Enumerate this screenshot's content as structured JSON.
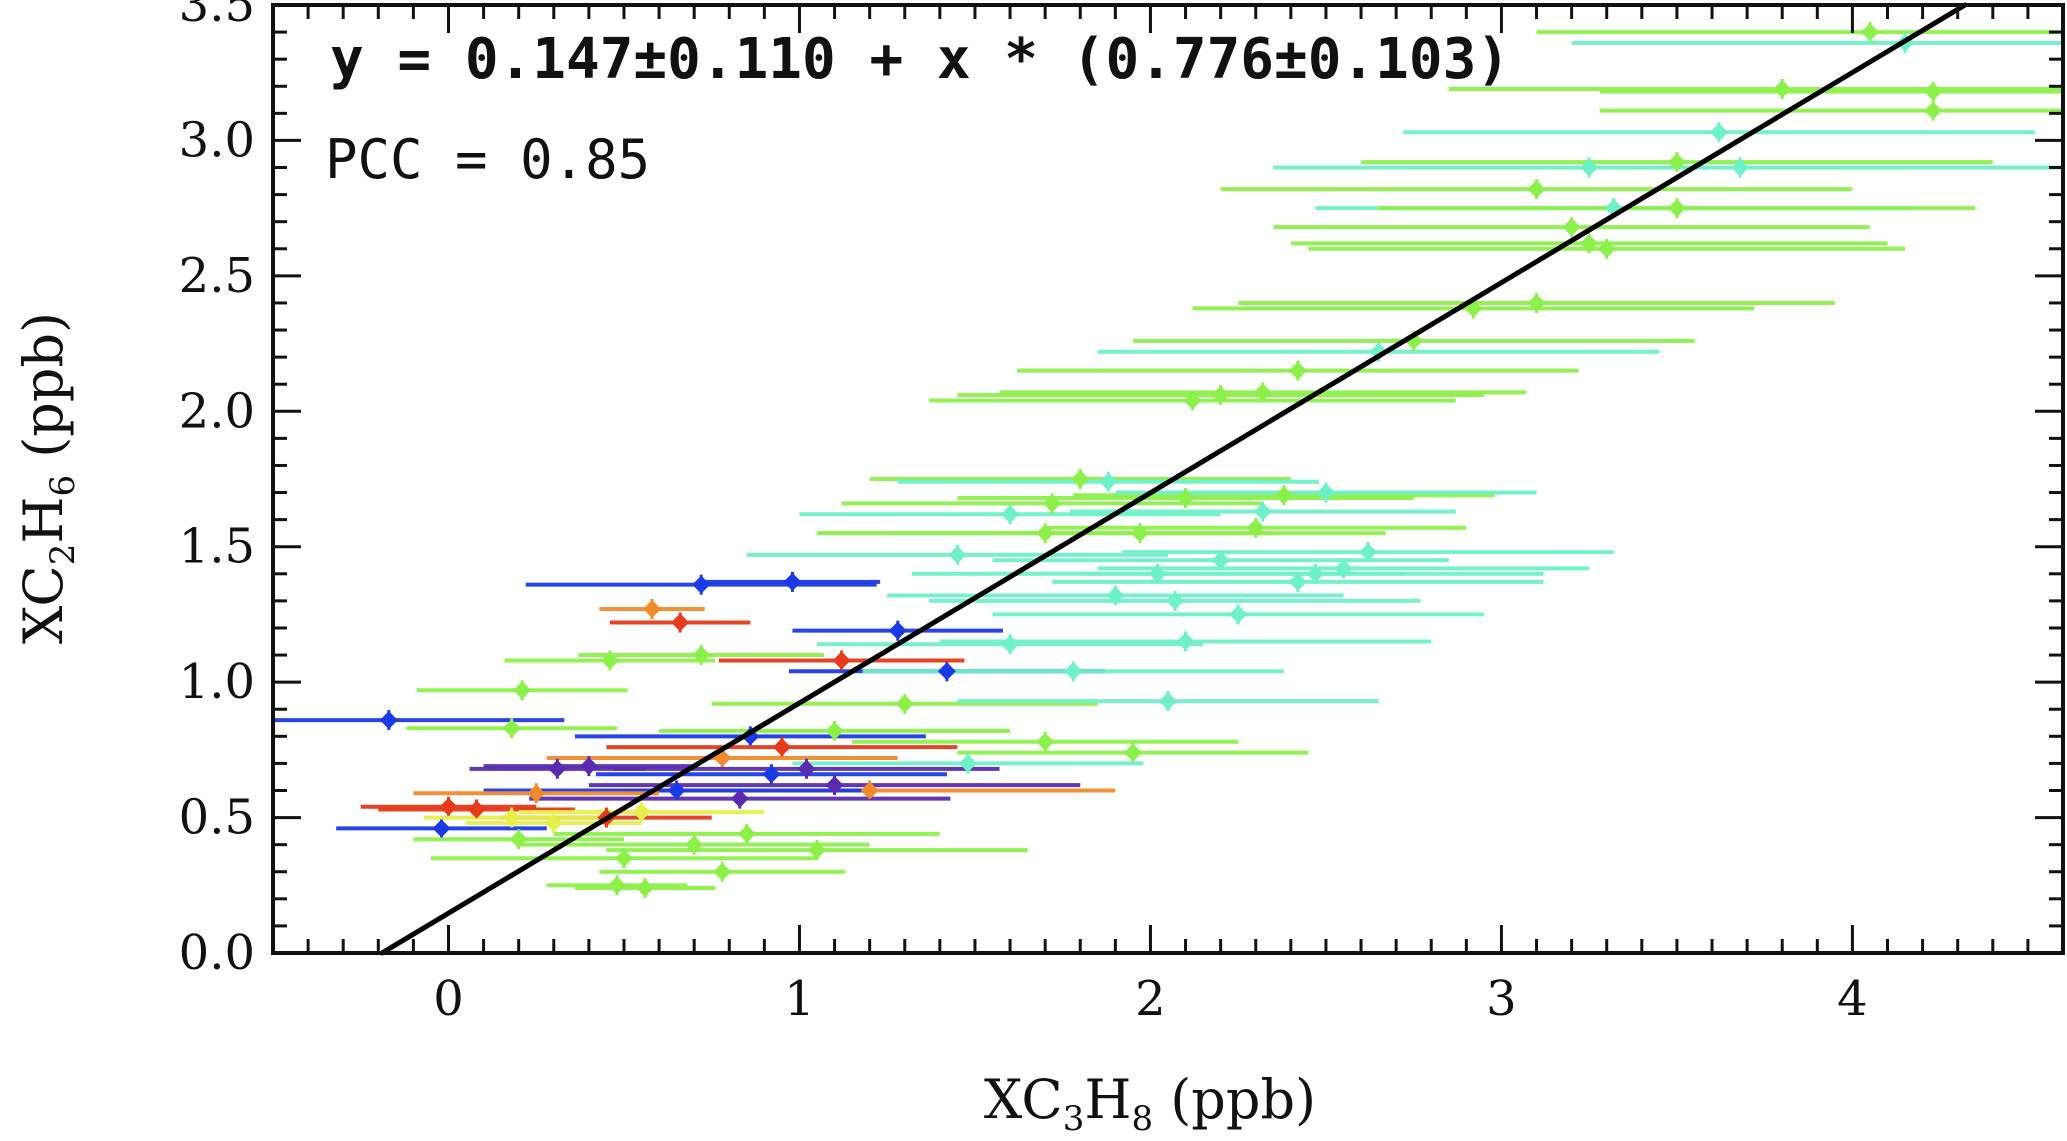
{
  "chart_data": {
    "type": "scatter",
    "xlabel": {
      "base": "XC",
      "sub1": "3",
      "mid": "H",
      "sub2": "8",
      "unit": " (ppb)"
    },
    "ylabel": {
      "base": "XC",
      "sub1": "2",
      "mid": "H",
      "sub2": "6",
      "unit": " (ppb)"
    },
    "xlim": [
      -0.5,
      4.6
    ],
    "ylim": [
      0.0,
      3.5
    ],
    "x_ticks": [
      "0",
      "1",
      "2",
      "3",
      "4"
    ],
    "y_ticks": [
      "0.0",
      "0.5",
      "1.0",
      "1.5",
      "2.0",
      "2.5",
      "3.0",
      "3.5"
    ],
    "x_tick_values": [
      0,
      1,
      2,
      3,
      4
    ],
    "y_tick_values": [
      0.0,
      0.5,
      1.0,
      1.5,
      2.0,
      2.5,
      3.0,
      3.5
    ],
    "x_minor_step": 0.1,
    "y_minor_step": 0.1,
    "grid": false,
    "annotations": {
      "equation": "y = 0.147±0.110 + x * (0.776±0.103)",
      "pcc": "PCC = 0.85"
    },
    "fit": {
      "intercept": 0.147,
      "slope": 0.776,
      "color": "#000000"
    },
    "colors": {
      "blue": "#1a3ae6",
      "purple": "#5a2bb0",
      "red": "#e63a1a",
      "orange": "#f08a2a",
      "yellow": "#e6f04a",
      "lime": "#8cf04a",
      "green": "#6af060",
      "aqua": "#6ef0c8"
    },
    "points": [
      {
        "x": -0.17,
        "y": 0.86,
        "xerr": 0.5,
        "c": "blue"
      },
      {
        "x": 0.72,
        "y": 1.36,
        "xerr": 0.5,
        "c": "blue"
      },
      {
        "x": 0.98,
        "y": 1.37,
        "xerr": 0.25,
        "c": "blue"
      },
      {
        "x": 0.58,
        "y": 1.27,
        "xerr": 0.15,
        "c": "orange"
      },
      {
        "x": 0.66,
        "y": 1.22,
        "xerr": 0.2,
        "c": "red"
      },
      {
        "x": 1.28,
        "y": 1.19,
        "xerr": 0.3,
        "c": "blue"
      },
      {
        "x": 1.42,
        "y": 1.04,
        "xerr": 0.45,
        "c": "blue"
      },
      {
        "x": 1.12,
        "y": 1.08,
        "xerr": 0.35,
        "c": "red"
      },
      {
        "x": 0.86,
        "y": 0.8,
        "xerr": 0.5,
        "c": "blue"
      },
      {
        "x": 0.95,
        "y": 0.76,
        "xerr": 0.5,
        "c": "red"
      },
      {
        "x": 0.78,
        "y": 0.72,
        "xerr": 0.5,
        "c": "orange"
      },
      {
        "x": 0.92,
        "y": 0.66,
        "xerr": 0.5,
        "c": "blue"
      },
      {
        "x": 1.1,
        "y": 0.62,
        "xerr": 0.7,
        "c": "purple"
      },
      {
        "x": 1.2,
        "y": 0.6,
        "xerr": 0.7,
        "c": "orange"
      },
      {
        "x": 0.83,
        "y": 0.57,
        "xerr": 0.6,
        "c": "purple"
      },
      {
        "x": 0.65,
        "y": 0.6,
        "xerr": 0.55,
        "c": "blue"
      },
      {
        "x": 1.02,
        "y": 0.68,
        "xerr": 0.55,
        "c": "purple"
      },
      {
        "x": 0.31,
        "y": 0.68,
        "xerr": 0.25,
        "c": "purple"
      },
      {
        "x": 0.4,
        "y": 0.69,
        "xerr": 0.3,
        "c": "purple"
      },
      {
        "x": 0.25,
        "y": 0.59,
        "xerr": 0.35,
        "c": "orange"
      },
      {
        "x": 0.0,
        "y": 0.54,
        "xerr": 0.25,
        "c": "red"
      },
      {
        "x": 0.08,
        "y": 0.53,
        "xerr": 0.28,
        "c": "red"
      },
      {
        "x": 0.45,
        "y": 0.5,
        "xerr": 0.3,
        "c": "red"
      },
      {
        "x": -0.02,
        "y": 0.46,
        "xerr": 0.3,
        "c": "blue"
      },
      {
        "x": 0.18,
        "y": 0.5,
        "xerr": 0.25,
        "c": "yellow"
      },
      {
        "x": 0.3,
        "y": 0.48,
        "xerr": 0.25,
        "c": "yellow"
      },
      {
        "x": 0.55,
        "y": 0.52,
        "xerr": 0.35,
        "c": "yellow"
      },
      {
        "x": 0.2,
        "y": 0.42,
        "xerr": 0.3,
        "c": "lime"
      },
      {
        "x": 0.7,
        "y": 0.4,
        "xerr": 0.5,
        "c": "lime"
      },
      {
        "x": 0.5,
        "y": 0.35,
        "xerr": 0.55,
        "c": "lime"
      },
      {
        "x": 0.85,
        "y": 0.44,
        "xerr": 0.55,
        "c": "lime"
      },
      {
        "x": 1.05,
        "y": 0.38,
        "xerr": 0.6,
        "c": "lime"
      },
      {
        "x": 0.48,
        "y": 0.25,
        "xerr": 0.2,
        "c": "lime"
      },
      {
        "x": 0.56,
        "y": 0.24,
        "xerr": 0.2,
        "c": "lime"
      },
      {
        "x": 0.78,
        "y": 0.3,
        "xerr": 0.35,
        "c": "lime"
      },
      {
        "x": 0.21,
        "y": 0.97,
        "xerr": 0.3,
        "c": "lime"
      },
      {
        "x": 0.46,
        "y": 1.08,
        "xerr": 0.3,
        "c": "lime"
      },
      {
        "x": 0.72,
        "y": 1.1,
        "xerr": 0.35,
        "c": "lime"
      },
      {
        "x": 0.18,
        "y": 0.83,
        "xerr": 0.3,
        "c": "lime"
      },
      {
        "x": 1.1,
        "y": 0.82,
        "xerr": 0.5,
        "c": "lime"
      },
      {
        "x": 1.3,
        "y": 0.92,
        "xerr": 0.55,
        "c": "lime"
      },
      {
        "x": 1.7,
        "y": 0.78,
        "xerr": 0.55,
        "c": "lime"
      },
      {
        "x": 1.95,
        "y": 0.74,
        "xerr": 0.5,
        "c": "lime"
      },
      {
        "x": 1.48,
        "y": 0.7,
        "xerr": 0.5,
        "c": "aqua"
      },
      {
        "x": 1.6,
        "y": 1.14,
        "xerr": 0.55,
        "c": "aqua"
      },
      {
        "x": 1.78,
        "y": 1.04,
        "xerr": 0.6,
        "c": "aqua"
      },
      {
        "x": 2.05,
        "y": 0.93,
        "xerr": 0.6,
        "c": "aqua"
      },
      {
        "x": 1.8,
        "y": 1.75,
        "xerr": 0.6,
        "c": "lime"
      },
      {
        "x": 1.88,
        "y": 1.74,
        "xerr": 0.6,
        "c": "aqua"
      },
      {
        "x": 1.6,
        "y": 1.62,
        "xerr": 0.6,
        "c": "aqua"
      },
      {
        "x": 1.72,
        "y": 1.66,
        "xerr": 0.6,
        "c": "lime"
      },
      {
        "x": 1.7,
        "y": 1.55,
        "xerr": 0.65,
        "c": "lime"
      },
      {
        "x": 1.97,
        "y": 1.55,
        "xerr": 0.7,
        "c": "lime"
      },
      {
        "x": 2.1,
        "y": 1.68,
        "xerr": 0.65,
        "c": "lime"
      },
      {
        "x": 2.38,
        "y": 1.69,
        "xerr": 0.6,
        "c": "lime"
      },
      {
        "x": 2.32,
        "y": 1.63,
        "xerr": 0.55,
        "c": "aqua"
      },
      {
        "x": 2.5,
        "y": 1.7,
        "xerr": 0.6,
        "c": "aqua"
      },
      {
        "x": 2.3,
        "y": 1.57,
        "xerr": 0.6,
        "c": "lime"
      },
      {
        "x": 1.45,
        "y": 1.47,
        "xerr": 0.6,
        "c": "aqua"
      },
      {
        "x": 2.2,
        "y": 1.45,
        "xerr": 0.65,
        "c": "aqua"
      },
      {
        "x": 2.55,
        "y": 1.42,
        "xerr": 0.7,
        "c": "aqua"
      },
      {
        "x": 2.02,
        "y": 1.4,
        "xerr": 0.7,
        "c": "aqua"
      },
      {
        "x": 2.42,
        "y": 1.37,
        "xerr": 0.7,
        "c": "aqua"
      },
      {
        "x": 2.62,
        "y": 1.48,
        "xerr": 0.7,
        "c": "aqua"
      },
      {
        "x": 2.47,
        "y": 1.4,
        "xerr": 0.65,
        "c": "aqua"
      },
      {
        "x": 2.07,
        "y": 1.3,
        "xerr": 0.7,
        "c": "aqua"
      },
      {
        "x": 2.25,
        "y": 1.25,
        "xerr": 0.7,
        "c": "aqua"
      },
      {
        "x": 1.9,
        "y": 1.32,
        "xerr": 0.65,
        "c": "aqua"
      },
      {
        "x": 2.1,
        "y": 1.15,
        "xerr": 0.7,
        "c": "aqua"
      },
      {
        "x": 2.12,
        "y": 2.04,
        "xerr": 0.75,
        "c": "lime"
      },
      {
        "x": 2.2,
        "y": 2.06,
        "xerr": 0.75,
        "c": "lime"
      },
      {
        "x": 2.32,
        "y": 2.07,
        "xerr": 0.75,
        "c": "lime"
      },
      {
        "x": 2.42,
        "y": 2.15,
        "xerr": 0.8,
        "c": "lime"
      },
      {
        "x": 2.65,
        "y": 2.22,
        "xerr": 0.8,
        "c": "aqua"
      },
      {
        "x": 2.75,
        "y": 2.26,
        "xerr": 0.8,
        "c": "lime"
      },
      {
        "x": 2.92,
        "y": 2.38,
        "xerr": 0.8,
        "c": "lime"
      },
      {
        "x": 3.1,
        "y": 2.4,
        "xerr": 0.85,
        "c": "lime"
      },
      {
        "x": 3.2,
        "y": 2.68,
        "xerr": 0.85,
        "c": "lime"
      },
      {
        "x": 3.25,
        "y": 2.62,
        "xerr": 0.85,
        "c": "lime"
      },
      {
        "x": 3.3,
        "y": 2.6,
        "xerr": 0.85,
        "c": "lime"
      },
      {
        "x": 3.1,
        "y": 2.82,
        "xerr": 0.9,
        "c": "lime"
      },
      {
        "x": 3.32,
        "y": 2.75,
        "xerr": 0.85,
        "c": "aqua"
      },
      {
        "x": 3.5,
        "y": 2.75,
        "xerr": 0.85,
        "c": "lime"
      },
      {
        "x": 3.25,
        "y": 2.9,
        "xerr": 0.9,
        "c": "aqua"
      },
      {
        "x": 3.5,
        "y": 2.92,
        "xerr": 0.9,
        "c": "lime"
      },
      {
        "x": 3.62,
        "y": 3.03,
        "xerr": 0.9,
        "c": "aqua"
      },
      {
        "x": 3.68,
        "y": 2.9,
        "xerr": 0.95,
        "c": "aqua"
      },
      {
        "x": 3.8,
        "y": 3.19,
        "xerr": 0.95,
        "c": "lime"
      },
      {
        "x": 4.05,
        "y": 3.4,
        "xerr": 0.95,
        "c": "lime"
      },
      {
        "x": 4.15,
        "y": 3.36,
        "xerr": 0.95,
        "c": "aqua"
      },
      {
        "x": 4.23,
        "y": 3.18,
        "xerr": 0.95,
        "c": "lime"
      },
      {
        "x": 4.23,
        "y": 3.11,
        "xerr": 0.95,
        "c": "lime"
      }
    ]
  }
}
